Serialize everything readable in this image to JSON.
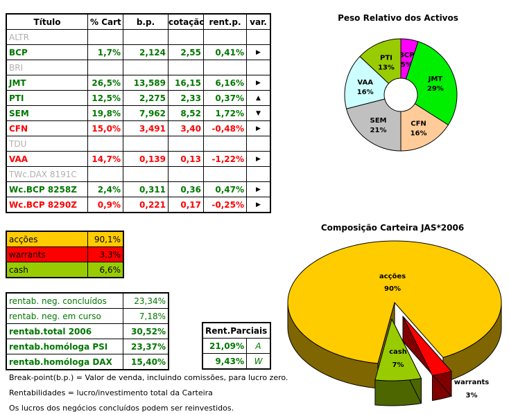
{
  "portfolio_table": {
    "headers": [
      "Título",
      "% Cart",
      "b.p.",
      "cotação",
      "rent.p.",
      "var."
    ],
    "rows": [
      {
        "titulo": "ALTR",
        "cart": "",
        "bp": "",
        "cot": "",
        "rent": "",
        "var": "",
        "style": "gray"
      },
      {
        "titulo": "BCP",
        "cart": "1,7%",
        "bp": "2,124",
        "cot": "2,55",
        "rent": "0,41%",
        "var": "right",
        "style": "g"
      },
      {
        "titulo": "BRI",
        "cart": "",
        "bp": "",
        "cot": "",
        "rent": "",
        "var": "",
        "style": "gray"
      },
      {
        "titulo": "JMT",
        "cart": "26,5%",
        "bp": "13,589",
        "cot": "16,15",
        "rent": "6,16%",
        "var": "right",
        "style": "g"
      },
      {
        "titulo": "PTI",
        "cart": "12,5%",
        "bp": "2,275",
        "cot": "2,33",
        "rent": "0,37%",
        "var": "up",
        "style": "g"
      },
      {
        "titulo": "SEM",
        "cart": "19,8%",
        "bp": "7,962",
        "cot": "8,52",
        "rent": "1,72%",
        "var": "down",
        "style": "g"
      },
      {
        "titulo": "CFN",
        "cart": "15,0%",
        "bp": "3,491",
        "cot": "3,40",
        "rent": "-0,48%",
        "var": "right",
        "style": "red"
      },
      {
        "titulo": "TDU",
        "cart": "",
        "bp": "",
        "cot": "",
        "rent": "",
        "var": "",
        "style": "gray"
      },
      {
        "titulo": "VAA",
        "cart": "14,7%",
        "bp": "0,139",
        "cot": "0,13",
        "rent": "-1,22%",
        "var": "right",
        "style": "red"
      },
      {
        "titulo": "TWc.DAX 8191C",
        "cart": "",
        "bp": "",
        "cot": "",
        "rent": "",
        "var": "",
        "style": "gray"
      },
      {
        "titulo": "Wc.BCP 8258Z",
        "cart": "2,4%",
        "bp": "0,311",
        "cot": "0,36",
        "rent": "0,47%",
        "var": "right",
        "style": "g"
      },
      {
        "titulo": "Wc.BCP 8290Z",
        "cart": "0,9%",
        "bp": "0,221",
        "cot": "0,17",
        "rent": "-0,25%",
        "var": "right",
        "style": "red"
      }
    ]
  },
  "allocation": [
    {
      "label": "acções",
      "value": "90,1%",
      "color": "#ffcc00"
    },
    {
      "label": "warrants",
      "value": "3,3%",
      "color": "#ff0000"
    },
    {
      "label": "cash",
      "value": "6,6%",
      "color": "#99cc00"
    }
  ],
  "returns": [
    {
      "label": "rentab. neg. concluídos",
      "value": "23,34%",
      "bold": false
    },
    {
      "label": "rentab. neg. em curso",
      "value": "7,18%",
      "bold": false
    },
    {
      "label": "rentab.total 2006",
      "value": "30,52%",
      "bold": true
    },
    {
      "label": "rentab.homóloga PSI",
      "value": "23,37%",
      "bold": true
    },
    {
      "label": "rentab.homóloga DAX",
      "value": "15,40%",
      "bold": true
    }
  ],
  "partial": {
    "title": "Rent.Parciais",
    "rows": [
      {
        "value": "21,09%",
        "code": "A"
      },
      {
        "value": "9,43%",
        "code": "W"
      }
    ]
  },
  "notes": [
    "Break-point(b.p.) = Valor de venda, incluindo comissões, para lucro zero.",
    "Rentabilidades = lucro/investimento total da Carteira",
    "Os lucros dos negócios concluídos podem ser reinvestidos."
  ],
  "chart_data": [
    {
      "type": "pie",
      "title": "Peso Relativo dos Activos",
      "donut": true,
      "slices": [
        {
          "label": "BCP",
          "value": 5,
          "color": "#ff00ff"
        },
        {
          "label": "JMT",
          "value": 29,
          "color": "#00ee00"
        },
        {
          "label": "CFN",
          "value": 16,
          "color": "#ffcc99"
        },
        {
          "label": "SEM",
          "value": 21,
          "color": "#c0c0c0"
        },
        {
          "label": "VAA",
          "value": 16,
          "color": "#ccffff"
        },
        {
          "label": "PTI",
          "value": 13,
          "color": "#99cc00"
        }
      ]
    },
    {
      "type": "pie",
      "title": "Composição Carteira JAS*2006",
      "3d": true,
      "slices": [
        {
          "label": "acções",
          "value": 90,
          "color": "#ffcc00",
          "side": "#806600"
        },
        {
          "label": "cash",
          "value": 7,
          "color": "#99cc00",
          "side": "#4d6600",
          "exploded": true
        },
        {
          "label": "warrants",
          "value": 3,
          "color": "#ff0000",
          "side": "#800000",
          "exploded": true
        }
      ]
    }
  ]
}
